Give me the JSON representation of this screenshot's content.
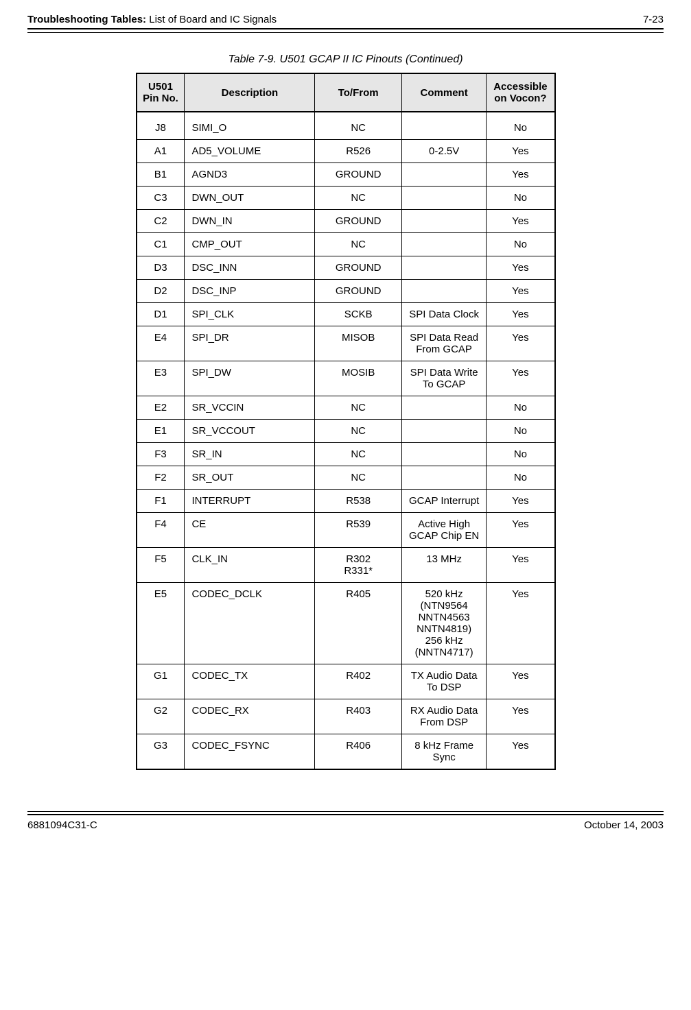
{
  "header": {
    "section_bold": "Troubleshooting Tables:",
    "section_rest": " List of Board and IC Signals",
    "page_number": "7-23"
  },
  "table": {
    "caption": "Table 7-9.  U501 GCAP II IC Pinouts (Continued)",
    "columns": {
      "pin": "U501 Pin No.",
      "description": "Description",
      "tofrom": "To/From",
      "comment": "Comment",
      "accessible": "Accessible on Vocon?"
    },
    "rows": [
      {
        "pin": "J8",
        "description": "SIMI_O",
        "tofrom": "NC",
        "comment": "",
        "accessible": "No"
      },
      {
        "pin": "A1",
        "description": "AD5_VOLUME",
        "tofrom": "R526",
        "comment": "0-2.5V",
        "accessible": "Yes"
      },
      {
        "pin": "B1",
        "description": "AGND3",
        "tofrom": "GROUND",
        "comment": "",
        "accessible": "Yes"
      },
      {
        "pin": "C3",
        "description": "DWN_OUT",
        "tofrom": "NC",
        "comment": "",
        "accessible": "No"
      },
      {
        "pin": "C2",
        "description": "DWN_IN",
        "tofrom": "GROUND",
        "comment": "",
        "accessible": "Yes"
      },
      {
        "pin": "C1",
        "description": "CMP_OUT",
        "tofrom": "NC",
        "comment": "",
        "accessible": "No"
      },
      {
        "pin": "D3",
        "description": "DSC_INN",
        "tofrom": "GROUND",
        "comment": "",
        "accessible": "Yes"
      },
      {
        "pin": "D2",
        "description": "DSC_INP",
        "tofrom": "GROUND",
        "comment": "",
        "accessible": "Yes"
      },
      {
        "pin": "D1",
        "description": "SPI_CLK",
        "tofrom": "SCKB",
        "comment": "SPI Data Clock",
        "accessible": "Yes"
      },
      {
        "pin": "E4",
        "description": "SPI_DR",
        "tofrom": "MISOB",
        "comment": "SPI Data Read From GCAP",
        "accessible": "Yes"
      },
      {
        "pin": "E3",
        "description": "SPI_DW",
        "tofrom": "MOSIB",
        "comment": "SPI Data Write To GCAP",
        "accessible": "Yes"
      },
      {
        "pin": "E2",
        "description": "SR_VCCIN",
        "tofrom": "NC",
        "comment": "",
        "accessible": "No"
      },
      {
        "pin": "E1",
        "description": "SR_VCCOUT",
        "tofrom": "NC",
        "comment": "",
        "accessible": "No"
      },
      {
        "pin": "F3",
        "description": "SR_IN",
        "tofrom": "NC",
        "comment": "",
        "accessible": "No"
      },
      {
        "pin": "F2",
        "description": "SR_OUT",
        "tofrom": "NC",
        "comment": "",
        "accessible": "No"
      },
      {
        "pin": "F1",
        "description": "INTERRUPT",
        "tofrom": "R538",
        "comment": "GCAP Interrupt",
        "accessible": "Yes"
      },
      {
        "pin": "F4",
        "description": "CE",
        "tofrom": "R539",
        "comment": "Active High GCAP Chip EN",
        "accessible": "Yes"
      },
      {
        "pin": "F5",
        "description": "CLK_IN",
        "tofrom": "R302\nR331*",
        "comment": "13 MHz",
        "accessible": "Yes"
      },
      {
        "pin": "E5",
        "description": "CODEC_DCLK",
        "tofrom": "R405",
        "comment": "520 kHz (NTN9564 NNTN4563 NNTN4819) 256 kHz (NNTN4717)",
        "accessible": "Yes"
      },
      {
        "pin": "G1",
        "description": "CODEC_TX",
        "tofrom": "R402",
        "comment": "TX Audio Data To DSP",
        "accessible": "Yes"
      },
      {
        "pin": "G2",
        "description": "CODEC_RX",
        "tofrom": "R403",
        "comment": "RX Audio Data From DSP",
        "accessible": "Yes"
      },
      {
        "pin": "G3",
        "description": "CODEC_FSYNC",
        "tofrom": "R406",
        "comment": "8 kHz Frame Sync",
        "accessible": "Yes"
      }
    ]
  },
  "footer": {
    "doc_number": "6881094C31-C",
    "date": "October 14, 2003"
  }
}
